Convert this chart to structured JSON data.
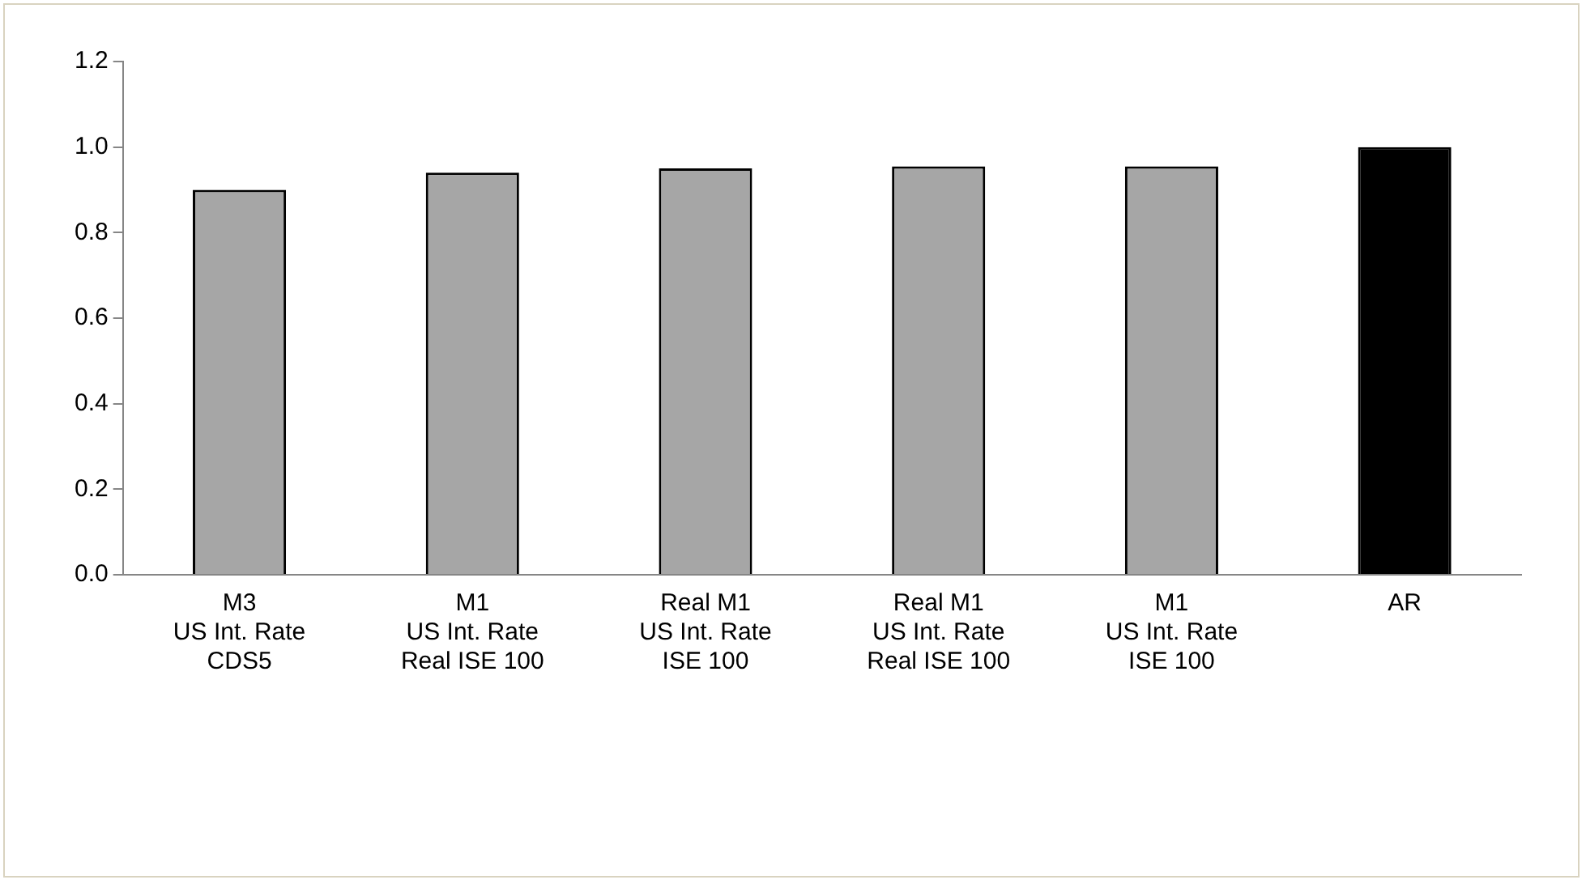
{
  "chart_data": {
    "type": "bar",
    "categories": [
      "M3\nUS Int. Rate\nCDS5",
      "M1\nUS Int. Rate\nReal ISE 100",
      "Real M1\nUS Int. Rate\nISE 100",
      "Real M1\nUS Int. Rate\nReal ISE 100",
      "M1\nUS Int. Rate\nISE 100",
      "AR"
    ],
    "values": [
      0.9,
      0.94,
      0.95,
      0.955,
      0.955,
      1.0
    ],
    "colors": [
      "#a6a6a6",
      "#a6a6a6",
      "#a6a6a6",
      "#a6a6a6",
      "#a6a6a6",
      "#000000"
    ],
    "ylim": [
      0,
      1.2
    ],
    "yticks": [
      {
        "value": 0,
        "label": "0.0"
      },
      0.2,
      0.4,
      0.6,
      0.8,
      {
        "value": 1,
        "label": "1.0"
      },
      1.2
    ],
    "grid": false,
    "legend": false
  }
}
